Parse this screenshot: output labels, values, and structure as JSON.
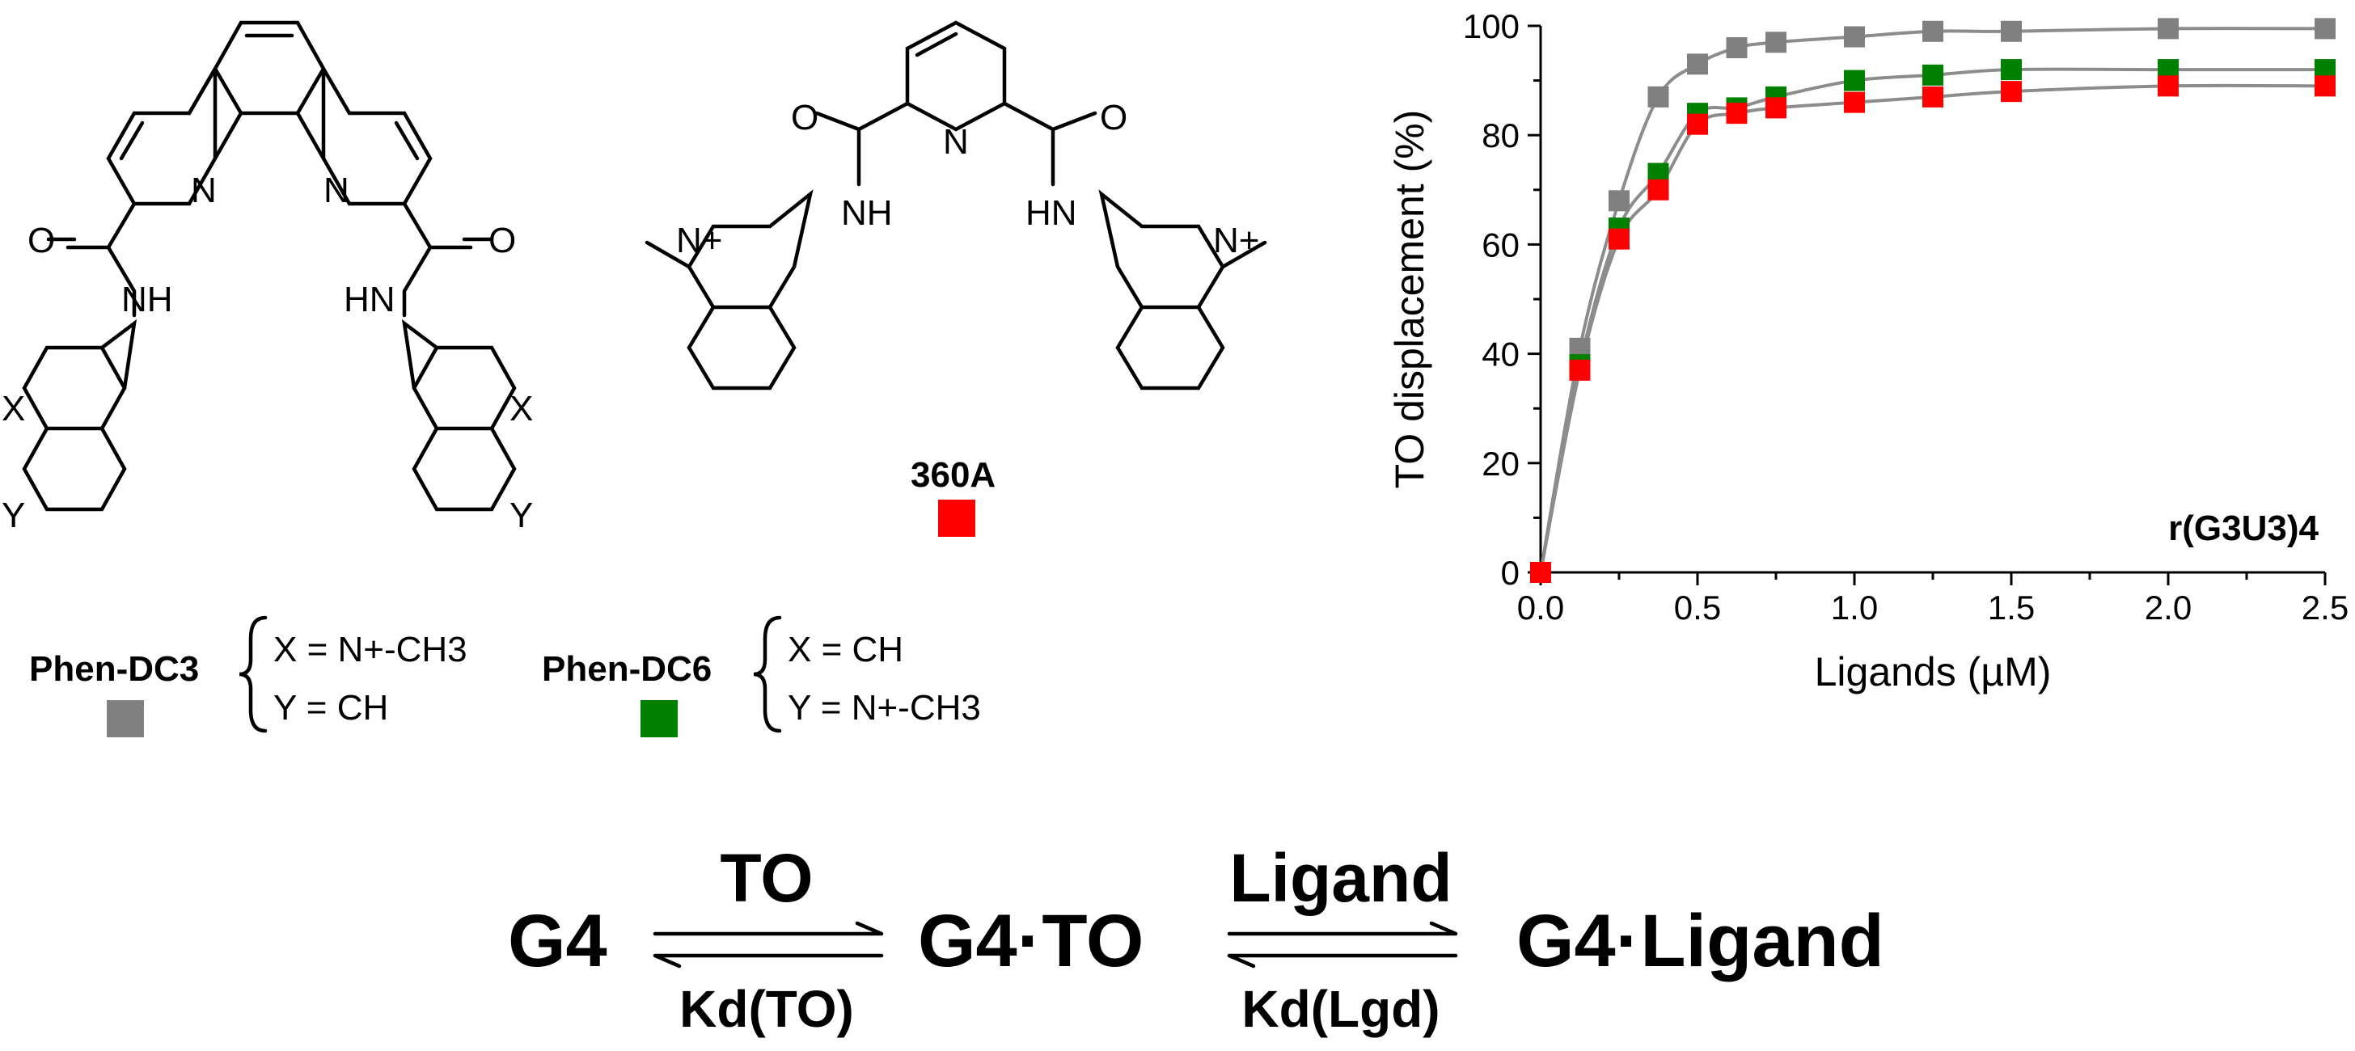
{
  "figure": {
    "ligands": [
      {
        "name": "Phen-DC3",
        "color": "#808080",
        "substituents": [
          "X = N+-CH3",
          "Y = CH"
        ]
      },
      {
        "name": "Phen-DC6",
        "color": "#008000",
        "substituents": [
          "X = CH",
          "Y = N+-CH3"
        ]
      },
      {
        "name": "360A",
        "color": "#ff0000"
      }
    ],
    "atom_labels": {
      "n": "N",
      "o": "O",
      "nh": "NH",
      "hn": "HN",
      "x": "X",
      "y": "Y",
      "nplus": "N+"
    },
    "equilibrium": {
      "g4": "G4",
      "g4to": "G4·TO",
      "g4ligand": "G4·Ligand",
      "to": "TO",
      "ligand": "Ligand",
      "kd_to": "Kd(TO)",
      "kd_lgd": "Kd(Lgd)",
      "g4to_color": "#f5821f"
    }
  },
  "chart_data": {
    "type": "scatter",
    "xlabel": "Ligands (µM)",
    "ylabel": "TO displacement (%)",
    "annotation": "r(G3U3)4",
    "xlim": [
      0,
      2.5
    ],
    "ylim": [
      0,
      100
    ],
    "xticks": [
      "0.0",
      "0.5",
      "1.0",
      "1.5",
      "2.0",
      "2.5"
    ],
    "yticks": [
      "0",
      "20",
      "40",
      "60",
      "80",
      "100"
    ],
    "fit_lines": true,
    "fit_color": "#8c8c8c",
    "series": [
      {
        "name": "Phen-DC3",
        "color": "#808080",
        "x": [
          0,
          0.125,
          0.25,
          0.375,
          0.5,
          0.625,
          0.75,
          1.0,
          1.25,
          1.5,
          2.0,
          2.5
        ],
        "y": [
          0,
          41,
          68,
          87,
          93,
          96,
          97,
          98,
          99,
          99,
          99.5,
          99.5
        ]
      },
      {
        "name": "Phen-DC6",
        "color": "#008000",
        "x": [
          0,
          0.125,
          0.25,
          0.375,
          0.5,
          0.625,
          0.75,
          1.0,
          1.25,
          1.5,
          2.0,
          2.5
        ],
        "y": [
          0,
          38,
          63,
          73,
          84,
          85,
          87,
          90,
          91,
          92,
          92,
          92
        ]
      },
      {
        "name": "360A",
        "color": "#ff0000",
        "x": [
          0,
          0.125,
          0.25,
          0.375,
          0.5,
          0.625,
          0.75,
          1.0,
          1.25,
          1.5,
          2.0,
          2.5
        ],
        "y": [
          0,
          37,
          61,
          70,
          82,
          84,
          85,
          86,
          87,
          88,
          89,
          89
        ]
      }
    ]
  }
}
